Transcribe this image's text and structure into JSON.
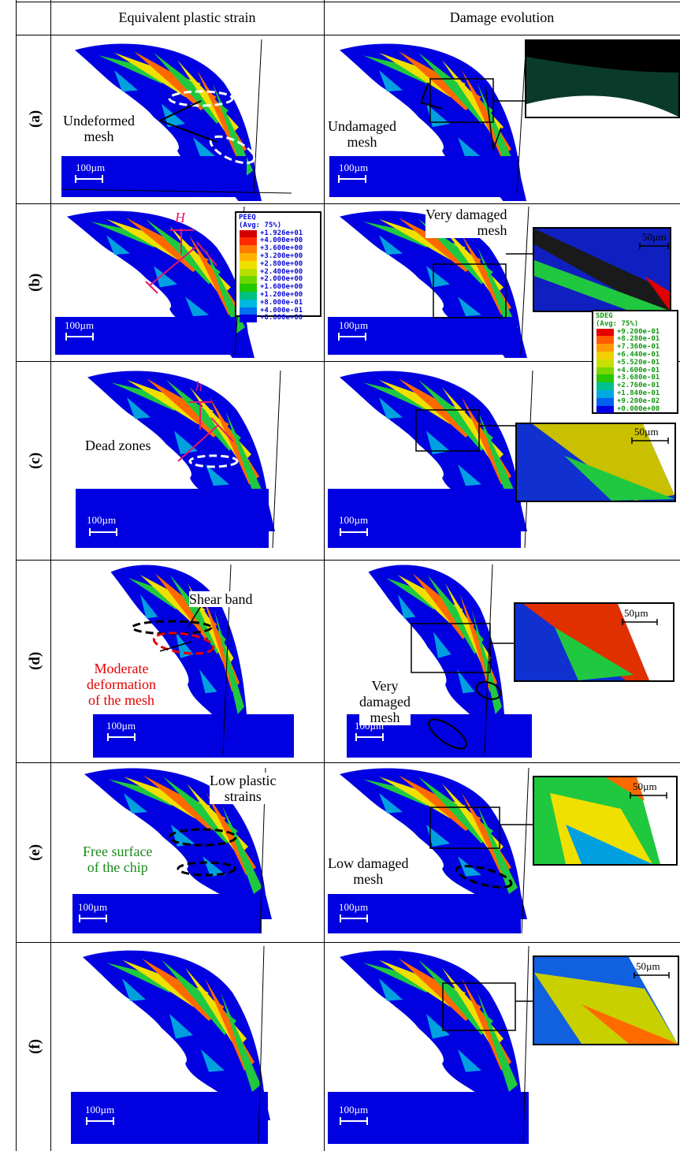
{
  "headers": {
    "col1": "Equivalent plastic strain",
    "col2": "Damage evolution"
  },
  "rows": [
    {
      "label": "(a)"
    },
    {
      "label": "(b)"
    },
    {
      "label": "(c)"
    },
    {
      "label": "(d)"
    },
    {
      "label": "(e)"
    },
    {
      "label": "(f)"
    }
  ],
  "annotations": {
    "a_left": "Undeformed\nmesh",
    "a_right": "Undamaged\nmesh",
    "b_right": "Very damaged\nmesh",
    "b_H": "H",
    "c_h": "h",
    "c_left": "Dead zones",
    "d_shear": "Shear band",
    "d_moderate": "Moderate\ndeformation\nof the mesh",
    "d_right": "Very\ndamaged\nmesh",
    "e_low_plastic": "Low plastic\nstrains",
    "e_free": "Free surface\nof the chip",
    "e_low_damaged": "Low damaged\nmesh"
  },
  "scales": {
    "large": "100µm",
    "small": "50µm"
  },
  "legend_peeq": {
    "title": "PEEQ",
    "subtitle": "(Avg: 75%)",
    "values": [
      "+1.926e+01",
      "+4.000e+00",
      "+3.600e+00",
      "+3.200e+00",
      "+2.800e+00",
      "+2.400e+00",
      "+2.000e+00",
      "+1.600e+00",
      "+1.200e+00",
      "+8.000e-01",
      "+4.000e-01",
      "+0.000e+00"
    ],
    "colors": [
      "#d40000",
      "#ff2a00",
      "#ff7a00",
      "#ffb000",
      "#f0e000",
      "#b8e000",
      "#6cd800",
      "#22c800",
      "#00c080",
      "#00b8e0",
      "#0070f0",
      "#0000e0"
    ]
  },
  "legend_sdeg": {
    "title": "SDEG",
    "subtitle": "(Avg: 75%)",
    "values": [
      "+9.200e-01",
      "+8.280e-01",
      "+7.360e-01",
      "+6.440e-01",
      "+5.520e-01",
      "+4.600e-01",
      "+3.680e-01",
      "+2.760e-01",
      "+1.840e-01",
      "+9.200e-02",
      "+0.000e+00"
    ],
    "colors": [
      "#e60000",
      "#ff5a00",
      "#ff9a00",
      "#f0d000",
      "#c8e000",
      "#7ad800",
      "#26c800",
      "#00c090",
      "#00a8e0",
      "#0060f0",
      "#0000e0"
    ]
  }
}
